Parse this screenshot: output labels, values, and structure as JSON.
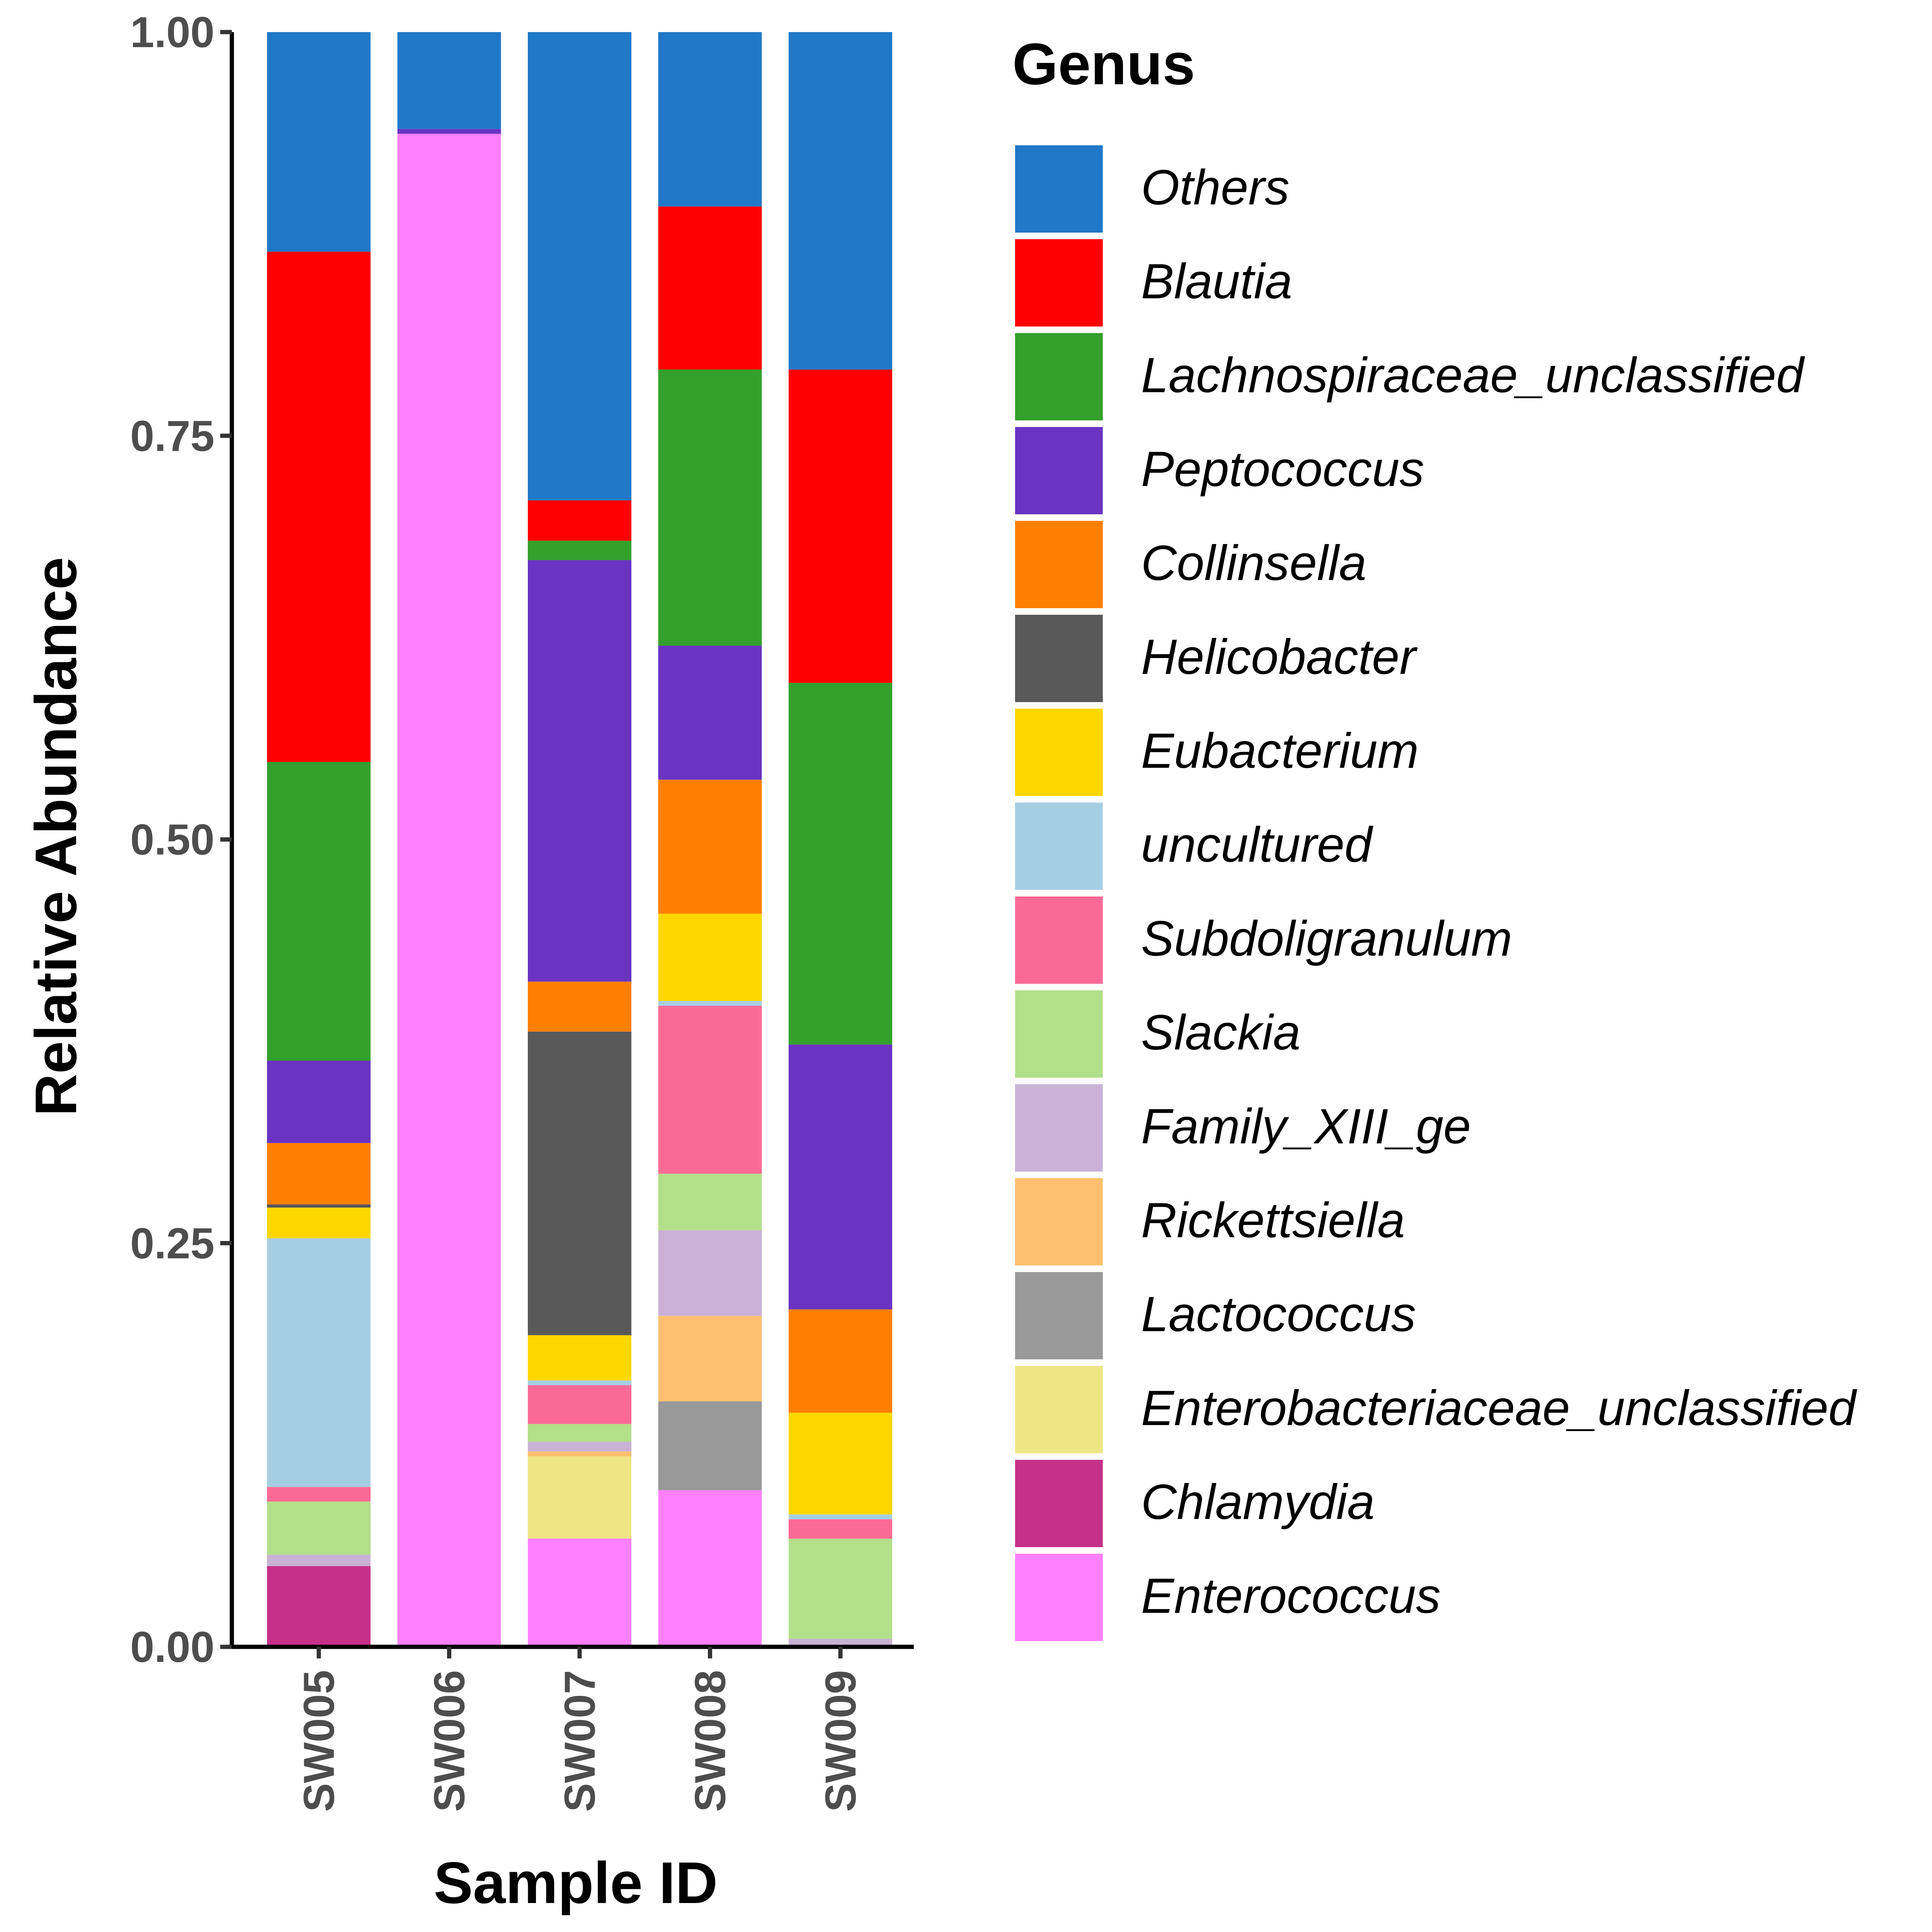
{
  "chart_data": {
    "type": "bar",
    "stacked": true,
    "xlabel": "Sample ID",
    "ylabel": "Relative Abundance",
    "ylim": [
      0,
      1
    ],
    "yticks": [
      "0.00",
      "0.25",
      "0.50",
      "0.75",
      "1.00"
    ],
    "categories": [
      "SW005",
      "SW006",
      "SW007",
      "SW008",
      "SW009"
    ],
    "legend": {
      "title": "Genus",
      "position": "right"
    },
    "series": [
      {
        "name": "Enterococcus",
        "color": "#FF80FF",
        "values": [
          0.0,
          0.937,
          0.067,
          0.097,
          0.0
        ]
      },
      {
        "name": "Chlamydia",
        "color": "#C73089",
        "values": [
          0.05,
          0.0,
          0.0,
          0.0,
          0.0
        ]
      },
      {
        "name": "Enterobacteriaceae_unclassified",
        "color": "#EEE685",
        "values": [
          0.0,
          0.0,
          0.051,
          0.0,
          0.0
        ]
      },
      {
        "name": "Lactococcus",
        "color": "#999999",
        "values": [
          0.0,
          0.0,
          0.0,
          0.055,
          0.0
        ]
      },
      {
        "name": "Rickettsiella",
        "color": "#FDBF6F",
        "values": [
          0.0,
          0.0,
          0.003,
          0.053,
          0.0
        ]
      },
      {
        "name": "Family_XIII_ge",
        "color": "#CAB2D6",
        "values": [
          0.007,
          0.0,
          0.006,
          0.053,
          0.005
        ]
      },
      {
        "name": "Slackia",
        "color": "#B2DF8A",
        "values": [
          0.033,
          0.0,
          0.011,
          0.035,
          0.062
        ]
      },
      {
        "name": "Subdoligranulum",
        "color": "#FB6A96",
        "values": [
          0.009,
          0.0,
          0.024,
          0.104,
          0.012
        ]
      },
      {
        "name": "uncultured",
        "color": "#A6CEE3",
        "values": [
          0.154,
          0.0,
          0.003,
          0.003,
          0.003
        ]
      },
      {
        "name": "Eubacterium",
        "color": "#FFD700",
        "values": [
          0.019,
          0.0,
          0.028,
          0.054,
          0.063
        ]
      },
      {
        "name": "Helicobacter",
        "color": "#595959",
        "values": [
          0.002,
          0.0,
          0.188,
          0.0,
          0.0
        ]
      },
      {
        "name": "Collinsella",
        "color": "#FF7F00",
        "values": [
          0.038,
          0.0,
          0.031,
          0.083,
          0.064
        ]
      },
      {
        "name": "Peptococcus",
        "color": "#6A33C2",
        "values": [
          0.051,
          0.003,
          0.261,
          0.083,
          0.164
        ]
      },
      {
        "name": "Lachnospiraceae_unclassified",
        "color": "#33A02C",
        "values": [
          0.185,
          0.0,
          0.012,
          0.171,
          0.224
        ]
      },
      {
        "name": "Blautia",
        "color": "#FF0000",
        "values": [
          0.316,
          0.0,
          0.025,
          0.101,
          0.194
        ]
      },
      {
        "name": "Others",
        "color": "#2079C8",
        "values": [
          0.136,
          0.06,
          0.29,
          0.108,
          0.209
        ]
      }
    ]
  }
}
